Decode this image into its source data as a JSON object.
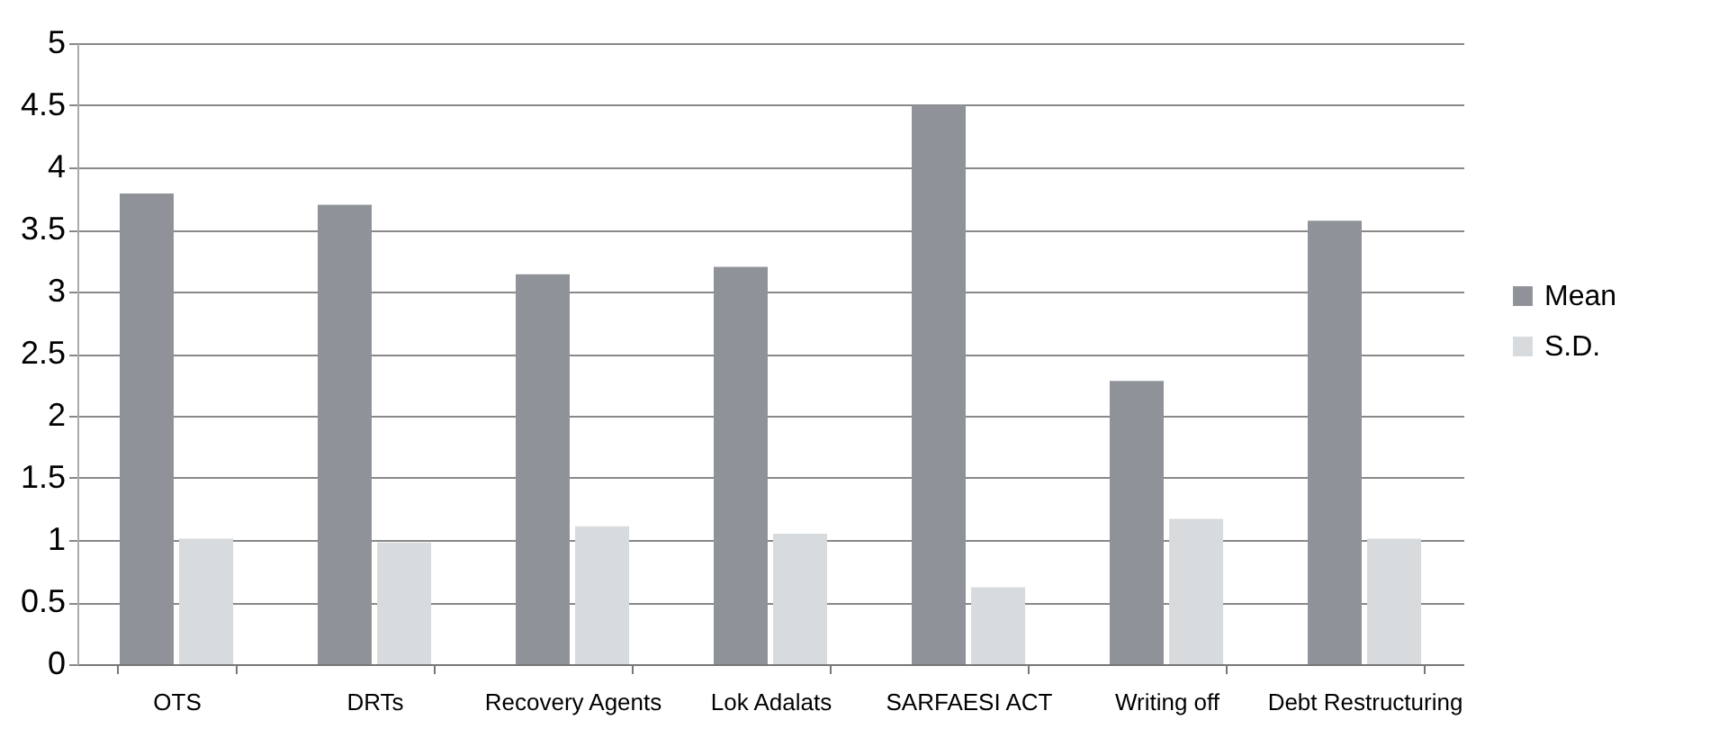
{
  "chart_data": {
    "type": "bar",
    "categories": [
      "OTS",
      "DRTs",
      "Recovery Agents",
      "Lok Adalats",
      "SARFAESI ACT",
      "Writing off",
      "Debt Restructuring"
    ],
    "series": [
      {
        "name": "Mean",
        "color": "#8f9399",
        "values": [
          3.79,
          3.7,
          3.14,
          3.2,
          4.5,
          2.28,
          3.57
        ]
      },
      {
        "name": "S.D.",
        "color": "#d8dbde",
        "values": [
          1.01,
          0.98,
          1.11,
          1.05,
          0.62,
          1.17,
          1.01
        ]
      }
    ],
    "ylim": [
      0,
      5
    ],
    "yticks": [
      0,
      0.5,
      1,
      1.5,
      2,
      2.5,
      3,
      3.5,
      4,
      4.5,
      5
    ],
    "grid": "y",
    "legend": "right"
  }
}
